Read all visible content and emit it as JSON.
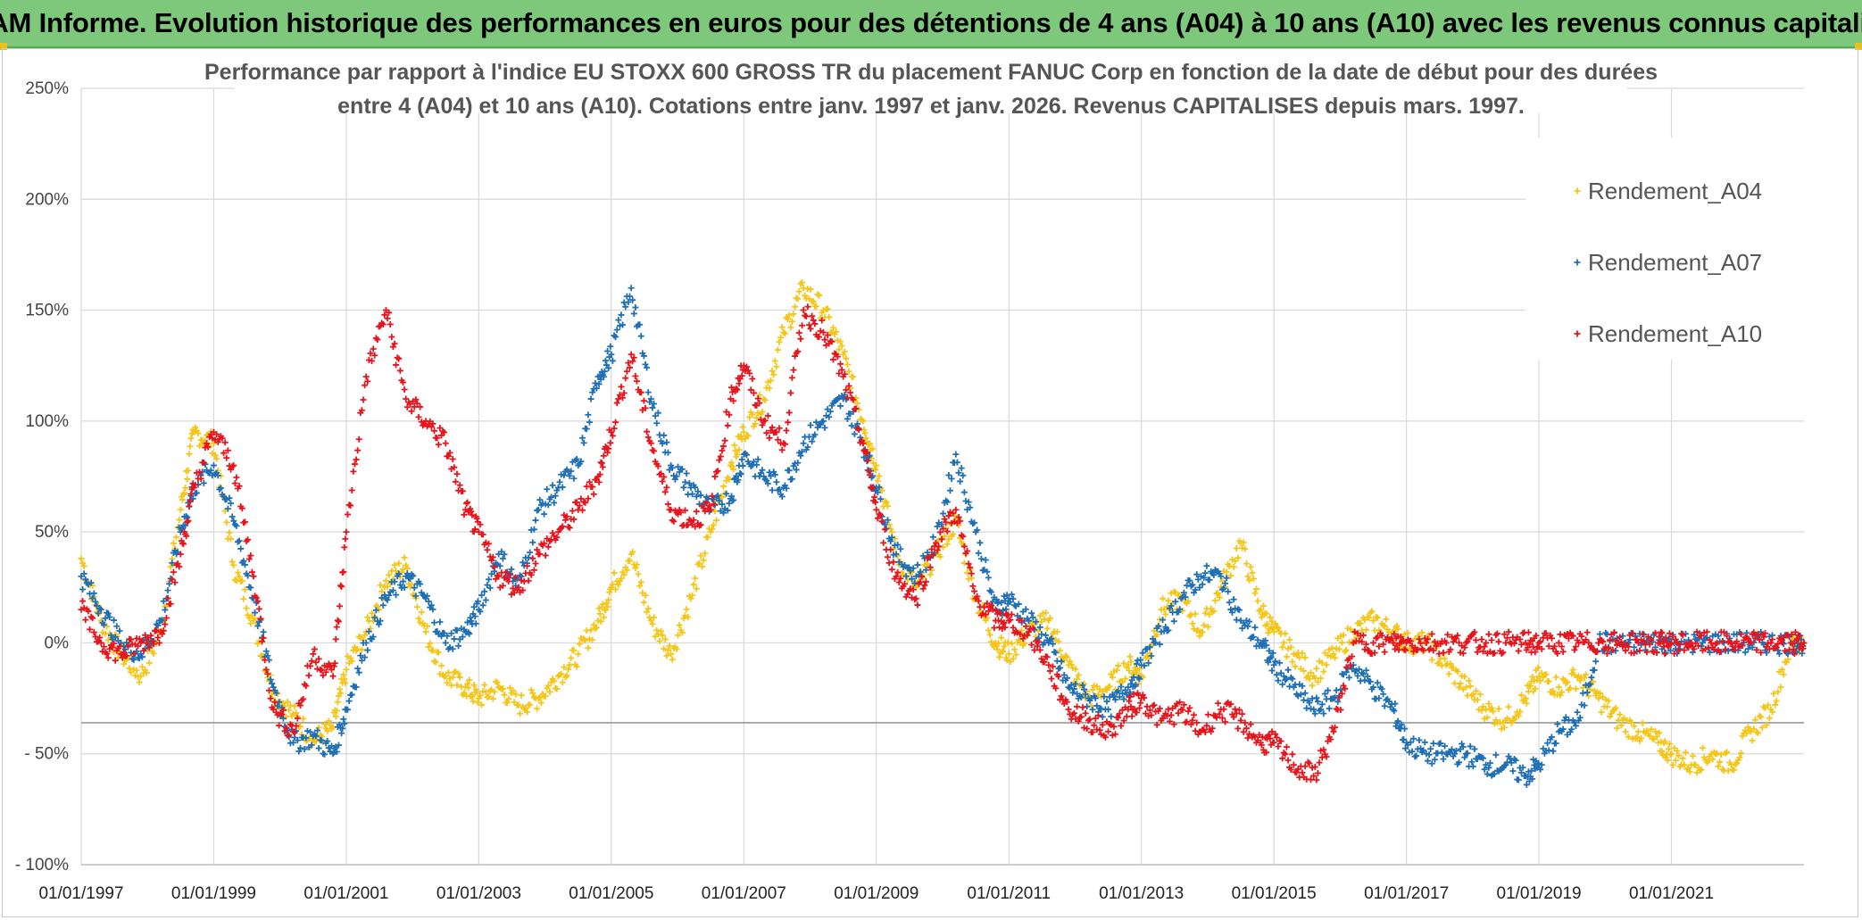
{
  "banner": {
    "title": "ADAM Informe. Evolution historique des performances en euros pour des détentions de 4 ans (A04) à 10 ans (A10) avec les revenus connus capitalisés"
  },
  "colors": {
    "banner_bg": "#7dc87a",
    "a04": "#f5c518",
    "a07": "#1f6fb5",
    "a10": "#e8141c"
  },
  "chart_data": {
    "type": "scatter",
    "title_line1": "Performance par rapport à l'indice EU STOXX 600 GROSS TR  du placement FANUC Corp en fonction de la date de début pour des durées",
    "title_line2": "entre 4 (A04) et 10 ans (A10). Cotations entre janv. 1997 et janv. 2026. Revenus CAPITALISES depuis mars. 1997.",
    "xlabel": "",
    "ylabel": "",
    "x_range": [
      1997.0,
      2023.0
    ],
    "ylim": [
      -100,
      250
    ],
    "y_ticks": [
      250,
      200,
      150,
      100,
      50,
      0,
      -50,
      -100
    ],
    "y_tick_labels": [
      "250%",
      "200%",
      "150%",
      "100%",
      "50%",
      "0%",
      "- 50%",
      "- 100%"
    ],
    "x_ticks": [
      1997,
      1999,
      2001,
      2003,
      2005,
      2007,
      2009,
      2011,
      2013,
      2015,
      2017,
      2019,
      2021
    ],
    "x_tick_labels": [
      "01/01/1997",
      "01/01/1999",
      "01/01/2001",
      "01/01/2003",
      "01/01/2005",
      "01/01/2007",
      "01/01/2009",
      "01/01/2011",
      "01/01/2013",
      "01/01/2015",
      "01/01/2017",
      "01/01/2019",
      "01/01/2021"
    ],
    "grid": true,
    "reference_line_y": -36,
    "legend_position": "top-right",
    "series": [
      {
        "name": "Rendement_A04",
        "color": "#f5c518",
        "x": [
          1997.0,
          1997.3,
          1997.6,
          1997.9,
          1998.2,
          1998.5,
          1998.7,
          1999.0,
          1999.3,
          1999.6,
          1999.9,
          2000.2,
          2000.5,
          2000.8,
          2001.0,
          2001.3,
          2001.6,
          2001.9,
          2002.2,
          2002.5,
          2002.8,
          2003.0,
          2003.3,
          2003.6,
          2003.9,
          2004.2,
          2004.5,
          2004.8,
          2005.0,
          2005.3,
          2005.6,
          2005.9,
          2006.2,
          2006.5,
          2006.8,
          2007.0,
          2007.3,
          2007.6,
          2007.9,
          2008.2,
          2008.5,
          2008.8,
          2009.0,
          2009.3,
          2009.6,
          2009.9,
          2010.2,
          2010.5,
          2010.8,
          2011.0,
          2011.3,
          2011.6,
          2011.9,
          2012.2,
          2012.5,
          2012.8,
          2013.0,
          2013.3,
          2013.6,
          2013.9,
          2014.2,
          2014.5,
          2014.8,
          2015.0,
          2015.3,
          2015.6,
          2015.9,
          2016.2,
          2016.5,
          2016.8,
          2017.0,
          2017.3,
          2017.6,
          2017.9,
          2018.2,
          2018.5,
          2018.8,
          2019.0,
          2019.3,
          2019.6,
          2019.9,
          2020.2,
          2020.5,
          2020.8,
          2021.0,
          2021.3,
          2021.6,
          2021.9,
          2022.2,
          2022.5,
          2022.8,
          2023.0
        ],
        "values": [
          38,
          10,
          -5,
          -15,
          5,
          60,
          95,
          90,
          35,
          10,
          -22,
          -32,
          -44,
          -38,
          -12,
          5,
          28,
          35,
          5,
          -15,
          -20,
          -25,
          -20,
          -28,
          -25,
          -15,
          -5,
          10,
          25,
          40,
          10,
          -5,
          20,
          50,
          80,
          95,
          110,
          140,
          160,
          150,
          130,
          100,
          80,
          40,
          25,
          40,
          55,
          20,
          0,
          -5,
          5,
          10,
          -10,
          -25,
          -20,
          -10,
          -15,
          15,
          20,
          5,
          25,
          45,
          15,
          5,
          -5,
          -15,
          -5,
          5,
          10,
          5,
          0,
          0,
          -10,
          -20,
          -30,
          -35,
          -25,
          -15,
          -20,
          -15,
          -25,
          -35,
          -40,
          -45,
          -50,
          -55,
          -50,
          -55,
          -40,
          -30,
          0,
          0
        ]
      },
      {
        "name": "Rendement_A07",
        "color": "#1f6fb5",
        "x": [
          1997.0,
          1997.3,
          1997.6,
          1997.9,
          1998.2,
          1998.5,
          1998.7,
          1999.0,
          1999.3,
          1999.6,
          1999.9,
          2000.2,
          2000.5,
          2000.8,
          2001.0,
          2001.3,
          2001.6,
          2001.9,
          2002.2,
          2002.5,
          2002.8,
          2003.0,
          2003.3,
          2003.6,
          2003.9,
          2004.2,
          2004.5,
          2004.8,
          2005.0,
          2005.3,
          2005.6,
          2005.9,
          2006.2,
          2006.5,
          2006.8,
          2007.0,
          2007.3,
          2007.6,
          2007.9,
          2008.2,
          2008.5,
          2008.8,
          2009.0,
          2009.3,
          2009.6,
          2009.9,
          2010.2,
          2010.5,
          2010.8,
          2011.0,
          2011.3,
          2011.6,
          2011.9,
          2012.2,
          2012.5,
          2012.8,
          2013.0,
          2013.3,
          2013.6,
          2013.9,
          2014.2,
          2014.5,
          2014.8,
          2015.0,
          2015.3,
          2015.6,
          2015.9,
          2016.2,
          2016.5,
          2016.8,
          2017.0,
          2017.3,
          2017.6,
          2017.9,
          2018.2,
          2018.5,
          2018.8,
          2019.0,
          2019.3,
          2019.6,
          2019.9,
          2020.2,
          2020.5,
          2020.8,
          2021.0,
          2021.3,
          2021.6,
          2021.9,
          2022.2,
          2022.5,
          2022.8,
          2023.0
        ],
        "values": [
          30,
          15,
          0,
          -5,
          10,
          50,
          70,
          80,
          55,
          20,
          -20,
          -45,
          -42,
          -50,
          -30,
          0,
          20,
          30,
          20,
          0,
          5,
          15,
          40,
          25,
          60,
          70,
          80,
          120,
          130,
          160,
          110,
          80,
          70,
          60,
          65,
          85,
          75,
          70,
          90,
          100,
          110,
          90,
          70,
          40,
          30,
          45,
          85,
          50,
          15,
          20,
          10,
          0,
          -20,
          -25,
          -30,
          -20,
          -10,
          5,
          20,
          30,
          30,
          10,
          0,
          -10,
          -20,
          -30,
          -25,
          -10,
          -20,
          -30,
          -45,
          -50,
          -50,
          -50,
          -55,
          -55,
          -60,
          -55,
          -40,
          -35,
          0,
          0,
          0,
          0,
          0,
          0,
          0,
          0,
          0,
          0,
          0,
          0
        ]
      },
      {
        "name": "Rendement_A10",
        "color": "#e8141c",
        "x": [
          1997.0,
          1997.3,
          1997.6,
          1997.9,
          1998.2,
          1998.5,
          1998.7,
          1999.0,
          1999.3,
          1999.6,
          1999.9,
          2000.2,
          2000.5,
          2000.8,
          2001.0,
          2001.3,
          2001.6,
          2001.9,
          2002.2,
          2002.5,
          2002.8,
          2003.0,
          2003.3,
          2003.6,
          2003.9,
          2004.2,
          2004.5,
          2004.8,
          2005.0,
          2005.3,
          2005.6,
          2005.9,
          2006.2,
          2006.5,
          2006.8,
          2007.0,
          2007.3,
          2007.6,
          2007.9,
          2008.2,
          2008.5,
          2008.8,
          2009.0,
          2009.3,
          2009.6,
          2009.9,
          2010.2,
          2010.5,
          2010.8,
          2011.0,
          2011.3,
          2011.6,
          2011.9,
          2012.2,
          2012.5,
          2012.8,
          2013.0,
          2013.3,
          2013.6,
          2013.9,
          2014.2,
          2014.5,
          2014.8,
          2015.0,
          2015.3,
          2015.6,
          2015.9,
          2016.2,
          2016.5,
          2016.8,
          2017.0,
          2017.3,
          2017.6,
          2017.9,
          2018.2,
          2018.5,
          2018.8,
          2019.0,
          2019.3,
          2019.6,
          2019.9,
          2020.2,
          2020.5,
          2020.8,
          2021.0,
          2021.3,
          2021.6,
          2021.9,
          2022.2,
          2022.5,
          2022.8,
          2023.0
        ],
        "values": [
          15,
          0,
          -5,
          0,
          5,
          40,
          70,
          95,
          80,
          30,
          -30,
          -40,
          -5,
          -15,
          50,
          120,
          150,
          110,
          100,
          90,
          60,
          50,
          30,
          25,
          40,
          50,
          60,
          75,
          95,
          130,
          90,
          60,
          55,
          60,
          110,
          125,
          100,
          90,
          150,
          140,
          120,
          90,
          60,
          30,
          20,
          45,
          60,
          20,
          10,
          10,
          5,
          -10,
          -30,
          -35,
          -40,
          -30,
          -25,
          -35,
          -30,
          -40,
          -30,
          -35,
          -45,
          -45,
          -55,
          -60,
          -40,
          0,
          0,
          0,
          0,
          0,
          0,
          0,
          0,
          0,
          0,
          0,
          0,
          0,
          0,
          0,
          0,
          0,
          0,
          0,
          0,
          0,
          0,
          0,
          0,
          0
        ]
      }
    ]
  }
}
